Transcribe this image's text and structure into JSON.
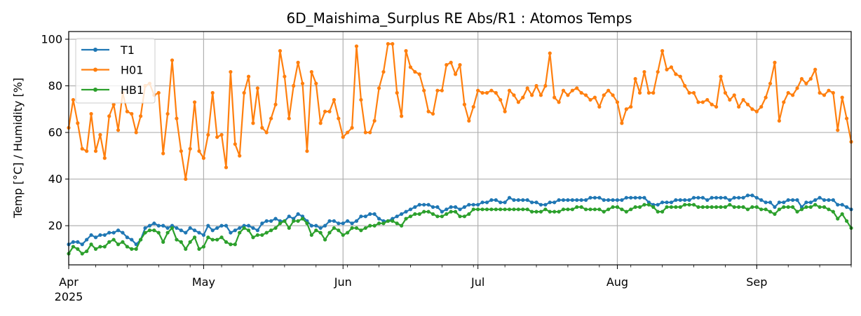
{
  "chart_data": {
    "type": "line",
    "title": "6D_Maishima_Surplus RE Abs/R1 : Atomos Temps",
    "xlabel": "",
    "ylabel": "Temp [°C] / Humidity [%]",
    "x_start": "2025-04-01",
    "x_step_days": 1,
    "xlim": [
      "2025-04-01",
      "2025-09-22"
    ],
    "ylim": [
      3.2,
      103.3
    ],
    "grid": true,
    "legend_placement": "top-left",
    "x_ticks": [
      {
        "date": "2025-04-01",
        "label": "Apr",
        "sublabel": "2025"
      },
      {
        "date": "2025-05-01",
        "label": "May"
      },
      {
        "date": "2025-06-01",
        "label": "Jun"
      },
      {
        "date": "2025-07-01",
        "label": "Jul"
      },
      {
        "date": "2025-08-01",
        "label": "Aug"
      },
      {
        "date": "2025-09-01",
        "label": "Sep"
      }
    ],
    "y_ticks": [
      20,
      40,
      60,
      80,
      100
    ],
    "series": [
      {
        "name": "T1",
        "color": "#1f77b4",
        "values": [
          12,
          13,
          13,
          12,
          14,
          16,
          15,
          16,
          16,
          17,
          17,
          18,
          17,
          15,
          14,
          12,
          14,
          19,
          20,
          21,
          20,
          20,
          19,
          20,
          19,
          18,
          17,
          19,
          18,
          17,
          16,
          20,
          18,
          19,
          20,
          20,
          17,
          18,
          19,
          20,
          20,
          19,
          18,
          21,
          22,
          22,
          23,
          22,
          22,
          24,
          23,
          25,
          24,
          22,
          20,
          20,
          19,
          20,
          22,
          22,
          21,
          21,
          22,
          21,
          22,
          24,
          24,
          25,
          25,
          23,
          22,
          22,
          23,
          24,
          25,
          26,
          27,
          28,
          29,
          29,
          29,
          28,
          28,
          26,
          27,
          28,
          28,
          27,
          28,
          29,
          29,
          29,
          30,
          30,
          31,
          31,
          30,
          30,
          32,
          31,
          31,
          31,
          31,
          30,
          30,
          29,
          29,
          30,
          30,
          31,
          31,
          31,
          31,
          31,
          31,
          31,
          32,
          32,
          32,
          31,
          31,
          31,
          31,
          31,
          32,
          32,
          32,
          32,
          32,
          30,
          29,
          29,
          30,
          30,
          30,
          31,
          31,
          31,
          31,
          32,
          32,
          32,
          31,
          32,
          32,
          32,
          32,
          31,
          32,
          32,
          32,
          33,
          33,
          32,
          31,
          30,
          30,
          28,
          30,
          30,
          31,
          31,
          31,
          28,
          30,
          30,
          31,
          32,
          31,
          31,
          31,
          29,
          29,
          28,
          27
        ]
      },
      {
        "name": "H01",
        "color": "#ff7f0e",
        "values": [
          62,
          74,
          64,
          53,
          52,
          68,
          52,
          59,
          49,
          67,
          72,
          61,
          77,
          69,
          68,
          60,
          67,
          80,
          81,
          76,
          77,
          51,
          68,
          91,
          66,
          52,
          40,
          53,
          73,
          52,
          49,
          59,
          77,
          58,
          59,
          45,
          86,
          55,
          50,
          77,
          84,
          64,
          79,
          62,
          60,
          66,
          72,
          95,
          84,
          66,
          80,
          90,
          81,
          52,
          86,
          81,
          64,
          69,
          69,
          74,
          66,
          58,
          60,
          62,
          97,
          74,
          60,
          60,
          65,
          79,
          86,
          98,
          98,
          77,
          67,
          95,
          88,
          86,
          85,
          78,
          69,
          68,
          78,
          78,
          89,
          90,
          85,
          89,
          72,
          65,
          71,
          78,
          77,
          77,
          78,
          77,
          74,
          69,
          78,
          76,
          73,
          75,
          79,
          76,
          80,
          76,
          80,
          94,
          75,
          73,
          78,
          76,
          78,
          79,
          77,
          76,
          74,
          75,
          71,
          76,
          78,
          76,
          73,
          64,
          70,
          71,
          83,
          77,
          86,
          77,
          77,
          86,
          95,
          87,
          88,
          85,
          84,
          80,
          77,
          77,
          73,
          73,
          74,
          72,
          71,
          84,
          77,
          74,
          76,
          71,
          74,
          72,
          70,
          69,
          71,
          75,
          81,
          90,
          65,
          73,
          77,
          76,
          79,
          83,
          81,
          83,
          87,
          77,
          76,
          78,
          77,
          61,
          75,
          66,
          56
        ]
      },
      {
        "name": "HB1",
        "color": "#2ca02c",
        "values": [
          8,
          11,
          10,
          8,
          9,
          12,
          10,
          11,
          11,
          13,
          14,
          12,
          13,
          11,
          10,
          10,
          14,
          17,
          18,
          18,
          17,
          13,
          17,
          19,
          14,
          13,
          10,
          13,
          15,
          10,
          11,
          15,
          14,
          14,
          15,
          13,
          12,
          12,
          17,
          19,
          18,
          15,
          16,
          16,
          17,
          18,
          19,
          21,
          22,
          19,
          22,
          22,
          23,
          21,
          16,
          18,
          17,
          14,
          17,
          19,
          18,
          16,
          17,
          19,
          19,
          18,
          19,
          20,
          20,
          21,
          21,
          22,
          22,
          21,
          20,
          23,
          24,
          25,
          25,
          26,
          26,
          25,
          24,
          24,
          25,
          26,
          26,
          24,
          24,
          25,
          27,
          27,
          27,
          27,
          27,
          27,
          27,
          27,
          27,
          27,
          27,
          27,
          27,
          26,
          26,
          26,
          27,
          26,
          26,
          26,
          27,
          27,
          27,
          28,
          28,
          27,
          27,
          27,
          27,
          26,
          27,
          28,
          28,
          27,
          26,
          27,
          28,
          28,
          29,
          29,
          28,
          26,
          26,
          28,
          28,
          28,
          28,
          29,
          29,
          29,
          28,
          28,
          28,
          28,
          28,
          28,
          28,
          29,
          28,
          28,
          28,
          27,
          28,
          28,
          27,
          27,
          26,
          25,
          27,
          28,
          28,
          28,
          26,
          27,
          28,
          28,
          29,
          28,
          28,
          27,
          26,
          23,
          25,
          22,
          19
        ]
      }
    ]
  }
}
